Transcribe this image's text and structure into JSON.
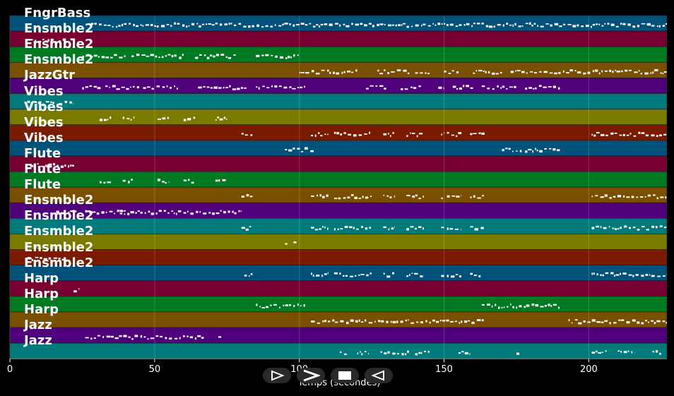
{
  "tracks": [
    "FngrBass",
    "Ensmble2",
    "Ensmble2",
    "Ensmble2",
    "JazzGtr",
    "Vibes",
    "Vibes",
    "Vibes",
    "Vibes",
    "Flute",
    "Flute",
    "Flute",
    "Ensmble2",
    "Ensmble2",
    "Ensmble2",
    "Ensmble2",
    "Ensmble2",
    "Harp",
    "Harp",
    "Harp",
    "Jazz",
    "Jazz"
  ],
  "lane_colors": [
    "#00527a",
    "#780030",
    "#007a22",
    "#7a5000",
    "#4f007a",
    "#007a7a",
    "#7a7a00",
    "#7a1a00",
    "#00527a",
    "#780030",
    "#007a22",
    "#7a5000",
    "#4f007a",
    "#007a7a",
    "#7a7a00",
    "#7a1a00",
    "#00527a",
    "#780030",
    "#007a22",
    "#7a5000",
    "#4f007a",
    "#007a7a"
  ],
  "x_axis": {
    "label": "Temps (secondes)",
    "range": [
      0,
      227
    ],
    "ticks": [
      {
        "value": 0,
        "label": "0"
      },
      {
        "value": 50,
        "label": "50"
      },
      {
        "value": 100,
        "label": "100"
      },
      {
        "value": 150,
        "label": "150"
      },
      {
        "value": 200,
        "label": "200"
      }
    ]
  },
  "note_spans": [
    [
      [
        28,
        227
      ]
    ],
    [
      [
        7,
        22
      ]
    ],
    [
      [
        25,
        40
      ],
      [
        42,
        60
      ],
      [
        64,
        78
      ],
      [
        85,
        100
      ]
    ],
    [
      [
        100,
        120
      ],
      [
        127,
        138
      ],
      [
        140,
        145
      ],
      [
        150,
        155
      ],
      [
        160,
        170
      ],
      [
        173,
        227
      ]
    ],
    [
      [
        25,
        32
      ],
      [
        33,
        45
      ],
      [
        46,
        58
      ],
      [
        65,
        72
      ],
      [
        72,
        82
      ],
      [
        85,
        102
      ],
      [
        123,
        130
      ],
      [
        135,
        142
      ],
      [
        148,
        150
      ],
      [
        153,
        160
      ],
      [
        163,
        175
      ],
      [
        178,
        190
      ]
    ],
    [
      [
        6,
        22
      ]
    ],
    [
      [
        31,
        35
      ],
      [
        39,
        43
      ],
      [
        51,
        55
      ],
      [
        60,
        64
      ],
      [
        71,
        75
      ]
    ],
    [
      [
        80,
        84
      ],
      [
        104,
        110
      ],
      [
        112,
        125
      ],
      [
        129,
        133
      ],
      [
        137,
        143
      ],
      [
        149,
        150
      ],
      [
        151,
        156
      ],
      [
        159,
        164
      ],
      [
        201,
        227
      ]
    ],
    [
      [
        95,
        105
      ],
      [
        170,
        177
      ],
      [
        178,
        190
      ]
    ],
    [
      [
        7,
        23
      ]
    ],
    [
      [
        31,
        35
      ],
      [
        39,
        43
      ],
      [
        51,
        55
      ],
      [
        60,
        64
      ],
      [
        71,
        75
      ]
    ],
    [
      [
        80,
        84
      ],
      [
        104,
        110
      ],
      [
        112,
        125
      ],
      [
        129,
        133
      ],
      [
        137,
        143
      ],
      [
        149,
        150
      ],
      [
        151,
        156
      ],
      [
        159,
        164
      ],
      [
        201,
        227
      ]
    ],
    [
      [
        16,
        23
      ],
      [
        26,
        40
      ],
      [
        38,
        80
      ]
    ],
    [
      [
        80,
        84
      ],
      [
        104,
        110
      ],
      [
        112,
        125
      ],
      [
        129,
        133
      ],
      [
        137,
        143
      ],
      [
        149,
        150
      ],
      [
        151,
        156
      ],
      [
        159,
        164
      ],
      [
        201,
        227
      ]
    ],
    [
      [
        95,
        96
      ],
      [
        98,
        99
      ]
    ],
    [
      [
        6,
        21
      ]
    ],
    [
      [
        81,
        84
      ],
      [
        104,
        110
      ],
      [
        112,
        125
      ],
      [
        129,
        133
      ],
      [
        137,
        143
      ],
      [
        149,
        150
      ],
      [
        151,
        156
      ],
      [
        159,
        163
      ],
      [
        201,
        227
      ]
    ],
    [
      [
        22,
        24
      ]
    ],
    [
      [
        85,
        102
      ],
      [
        163,
        190
      ]
    ],
    [
      [
        104,
        164
      ],
      [
        193,
        227
      ]
    ],
    [
      [
        26,
        67
      ],
      [
        72,
        73
      ]
    ],
    [
      [
        114,
        117
      ],
      [
        120,
        124
      ],
      [
        128,
        138
      ],
      [
        140,
        145
      ],
      [
        155,
        159
      ],
      [
        175,
        176
      ],
      [
        201,
        207
      ],
      [
        210,
        216
      ],
      [
        222,
        225
      ]
    ]
  ],
  "controls": {
    "play": "play-icon",
    "next": "next-icon",
    "stop": "stop-icon",
    "prev": "prev-icon"
  }
}
